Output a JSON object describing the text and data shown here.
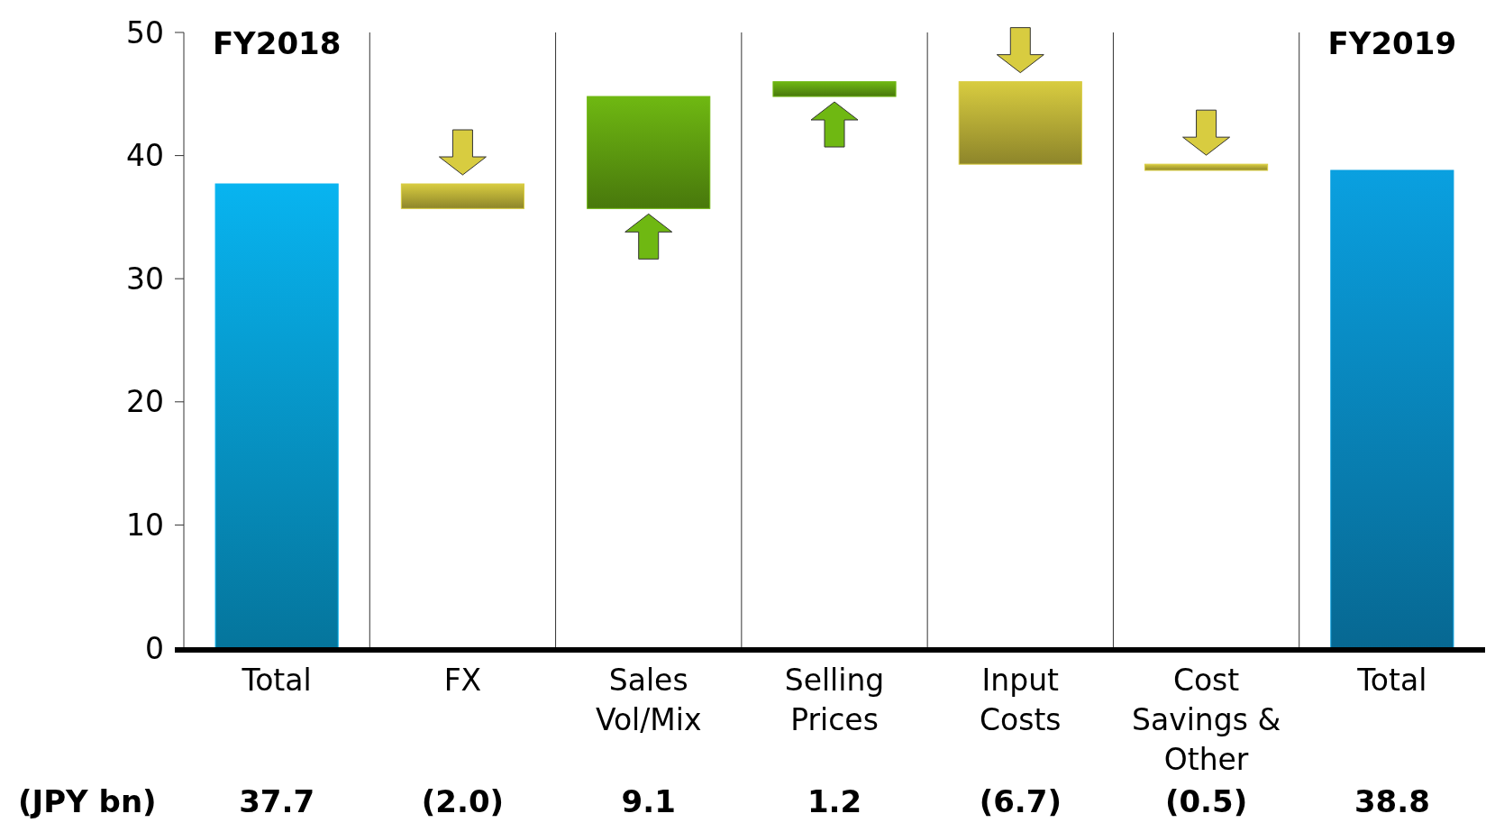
{
  "chart_data": {
    "type": "bar",
    "categories": [
      "Total",
      "FX",
      "Sales Vol/Mix",
      "Selling Prices",
      "Input Costs",
      "Cost Savings & Other",
      "Total"
    ],
    "values": [
      37.7,
      -2.0,
      9.1,
      1.2,
      -6.7,
      -0.5,
      38.8
    ],
    "base": [
      0,
      37.7,
      35.7,
      44.8,
      46.0,
      39.3,
      0
    ],
    "colors": [
      "#08b4f0",
      "#d8cc40",
      "#6fb812",
      "#6fb812",
      "#d8cc40",
      "#d8cc40",
      "#0aa0e0"
    ],
    "value_labels": [
      "37.7",
      "(2.0)",
      "9.1",
      "1.2",
      "(6.7)",
      "(0.5)",
      "38.8"
    ],
    "annotations": [
      "FY2018",
      "FY2019",
      "(JPY bn)"
    ],
    "ylim": [
      0,
      50
    ],
    "yticks": [
      0,
      10,
      20,
      30,
      40,
      50
    ],
    "grid": "x"
  }
}
